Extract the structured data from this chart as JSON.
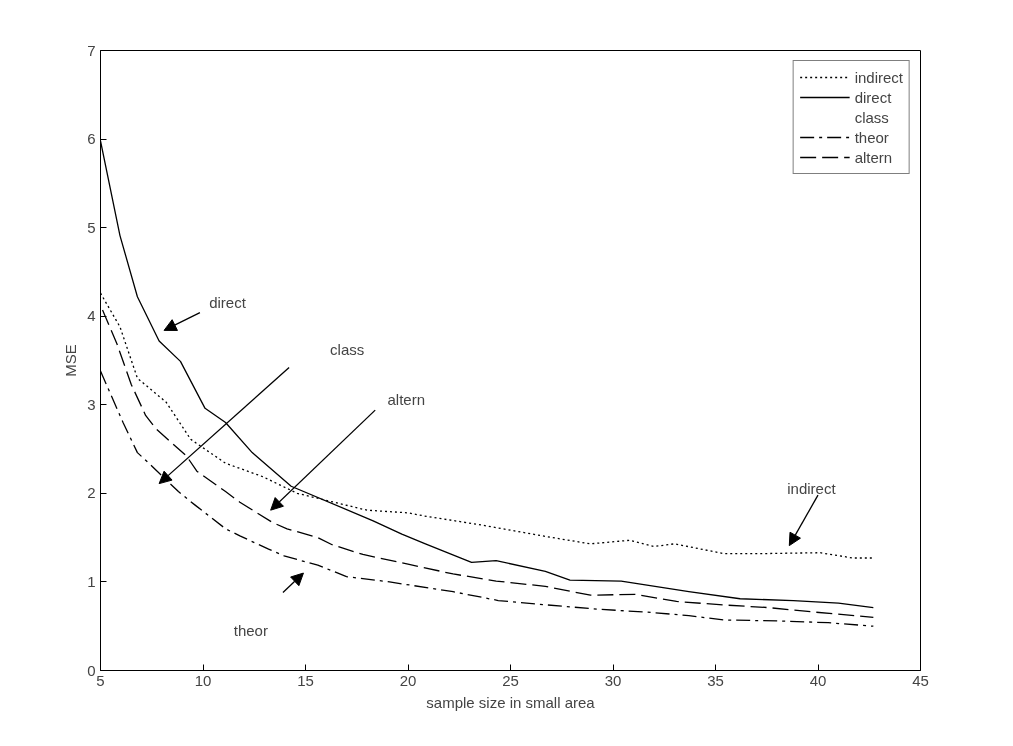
{
  "chart_data": {
    "type": "line",
    "xlabel": "sample size in small area",
    "ylabel": "MSE",
    "xlim": [
      5,
      45
    ],
    "ylim": [
      0,
      7
    ],
    "xticks": [
      5,
      10,
      15,
      20,
      25,
      30,
      35,
      40,
      45
    ],
    "yticks": [
      0,
      1,
      2,
      3,
      4,
      5,
      6,
      7
    ],
    "grid": false,
    "legend": "top right",
    "marker": "none",
    "series": [
      {
        "name": "indirect",
        "color": "#000000",
        "line_style": "dotted",
        "x": [
          5,
          5.95,
          6.8,
          8.2,
          9.4,
          11.1,
          12.9,
          14.6,
          18,
          20,
          20.9,
          23.4,
          26.8,
          28.9,
          30.8,
          32,
          33,
          35.4,
          37.4,
          40.1,
          41.7,
          42.7
        ],
        "values": [
          4.26,
          3.88,
          3.3,
          3.03,
          2.61,
          2.34,
          2.19,
          2.0,
          1.81,
          1.78,
          1.74,
          1.65,
          1.51,
          1.43,
          1.47,
          1.4,
          1.43,
          1.32,
          1.32,
          1.33,
          1.27,
          1.27
        ]
      },
      {
        "name": "direct",
        "color": "#000000",
        "line_style": "solid",
        "x": [
          5,
          5.95,
          6.8,
          7.86,
          8.9,
          10.1,
          11.1,
          12.4,
          14.3,
          18.3,
          19.7,
          20.85,
          23.1,
          24.3,
          26.7,
          27.9,
          30.4,
          33.7,
          36.2,
          38.8,
          41,
          42.7
        ],
        "values": [
          5.98,
          4.91,
          4.22,
          3.72,
          3.49,
          2.96,
          2.8,
          2.46,
          2.08,
          1.69,
          1.54,
          1.43,
          1.22,
          1.24,
          1.12,
          1.02,
          1.01,
          0.89,
          0.81,
          0.79,
          0.76,
          0.71
        ]
      },
      {
        "name": "class"
      },
      {
        "name": "theor",
        "color": "#000000",
        "line_style": "dashdot",
        "x": [
          5,
          6.1,
          6.8,
          7.5,
          8.8,
          9.6,
          11.1,
          11.8,
          13.2,
          14,
          15.6,
          17,
          19.1,
          22.2,
          24.4,
          26.8,
          29.4,
          31.6,
          33.7,
          35.4,
          38,
          40.5,
          42.7
        ],
        "values": [
          3.38,
          2.8,
          2.46,
          2.31,
          2.02,
          1.87,
          1.6,
          1.52,
          1.37,
          1.29,
          1.19,
          1.06,
          1.0,
          0.89,
          0.79,
          0.74,
          0.69,
          0.66,
          0.62,
          0.57,
          0.56,
          0.54,
          0.5
        ]
      },
      {
        "name": "altern",
        "color": "#000000",
        "line_style": "dashed",
        "x": [
          5.1,
          5.8,
          6.5,
          7.2,
          7.7,
          9.2,
          9.7,
          11.1,
          11.8,
          13.4,
          14.1,
          15.6,
          16.3,
          17.8,
          20,
          22.2,
          24.3,
          26.7,
          28.9,
          31.1,
          33.1,
          35.4,
          37.6,
          39.8,
          42.7
        ],
        "values": [
          4.07,
          3.69,
          3.23,
          2.88,
          2.73,
          2.42,
          2.25,
          2.02,
          1.9,
          1.67,
          1.6,
          1.5,
          1.42,
          1.31,
          1.2,
          1.09,
          1.01,
          0.95,
          0.85,
          0.86,
          0.78,
          0.74,
          0.71,
          0.66,
          0.6
        ]
      }
    ],
    "annotations": [
      "direct",
      "class",
      "altern",
      "theor",
      "indirect"
    ]
  }
}
